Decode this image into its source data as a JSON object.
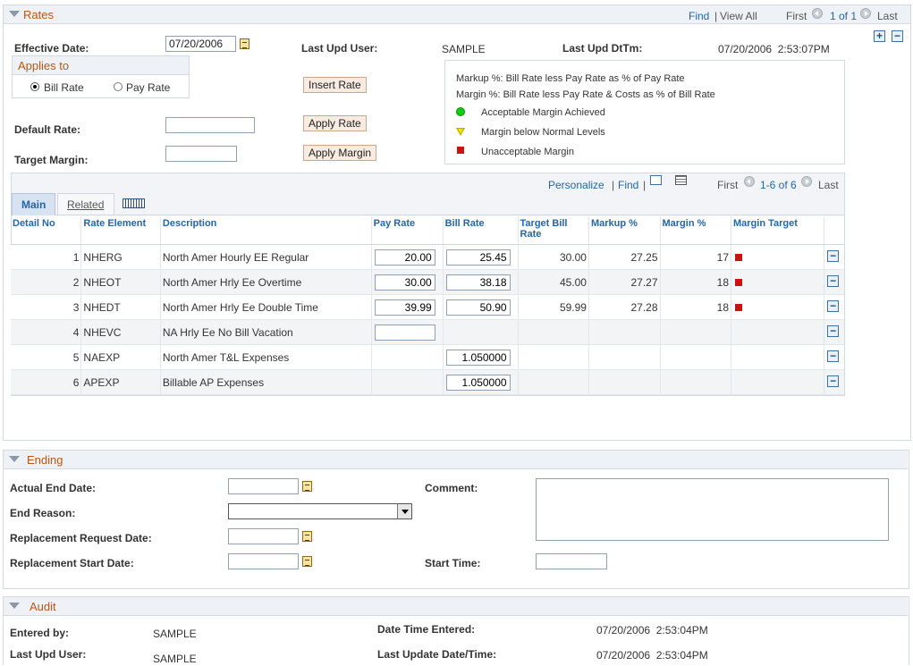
{
  "rates": {
    "title": "Rates",
    "nav": {
      "find": "Find",
      "view_all": "View All",
      "first": "First",
      "count": "1 of 1",
      "last": "Last"
    },
    "effective_date_label": "Effective Date:",
    "effective_date": "07/20/2006",
    "last_upd_user_label": "Last Upd User:",
    "last_upd_user": "SAMPLE",
    "last_upd_dttm_label": "Last Upd DtTm:",
    "last_upd_dttm": "07/20/2006  2:53:07PM",
    "applies_to_title": "Applies to",
    "radio_bill": "Bill Rate",
    "radio_pay": "Pay Rate",
    "selected": "Bill Rate",
    "insert_rate": "Insert Rate",
    "apply_rate": "Apply Rate",
    "apply_margin": "Apply Margin",
    "default_rate_label": "Default Rate:",
    "target_margin_label": "Target Margin:",
    "default_rate": "",
    "target_margin": "",
    "legend": {
      "markup_def": "Markup %: Bill Rate less Pay Rate as % of Pay Rate",
      "margin_def": "Margin %: Bill Rate less Pay Rate & Costs as % of Bill Rate",
      "green": "Acceptable Margin Achieved",
      "yellow": "Margin below Normal Levels",
      "red": "Unacceptable Margin",
      "colors": {
        "green": "#11cc11",
        "yellow": "#f2e600",
        "red": "#cc1111"
      }
    }
  },
  "grid": {
    "personalize": "Personalize",
    "find": "Find",
    "first": "First",
    "count": "1-6 of 6",
    "last": "Last",
    "tabs": [
      "Main",
      "Related"
    ],
    "active_tab": "Main",
    "columns": [
      "Detail No",
      "Rate Element",
      "Description",
      "Pay Rate",
      "Bill Rate",
      "Target Bill Rate",
      "Markup %",
      "Margin %",
      "Margin Target"
    ],
    "rows": [
      {
        "no": "1",
        "element": "NHERG",
        "desc": "North Amer Hourly EE Regular",
        "pay": "20.00",
        "bill": "25.45",
        "target": "30.00",
        "markup": "27.25",
        "margin": "17",
        "flag": "red",
        "has_pay": true,
        "has_bill": true
      },
      {
        "no": "2",
        "element": "NHEOT",
        "desc": "North Amer Hrly Ee Overtime",
        "pay": "30.00",
        "bill": "38.18",
        "target": "45.00",
        "markup": "27.27",
        "margin": "18",
        "flag": "red",
        "has_pay": true,
        "has_bill": true
      },
      {
        "no": "3",
        "element": "NHEDT",
        "desc": "North Amer Hrly Ee Double Time",
        "pay": "39.99",
        "bill": "50.90",
        "target": "59.99",
        "markup": "27.28",
        "margin": "18",
        "flag": "red",
        "has_pay": true,
        "has_bill": true
      },
      {
        "no": "4",
        "element": "NHEVC",
        "desc": "NA Hrly Ee No Bill Vacation",
        "pay": "",
        "bill": "",
        "target": "",
        "markup": "",
        "margin": "",
        "flag": "",
        "has_pay": true,
        "has_bill": false
      },
      {
        "no": "5",
        "element": "NAEXP",
        "desc": "North Amer T&L Expenses",
        "pay": "",
        "bill": "1.050000",
        "target": "",
        "markup": "",
        "margin": "",
        "flag": "",
        "has_pay": false,
        "has_bill": true
      },
      {
        "no": "6",
        "element": "APEXP",
        "desc": "Billable AP Expenses",
        "pay": "",
        "bill": "1.050000",
        "target": "",
        "markup": "",
        "margin": "",
        "flag": "",
        "has_pay": false,
        "has_bill": true
      }
    ]
  },
  "ending": {
    "title": "Ending",
    "actual_end_date": "Actual End Date:",
    "end_reason": "End Reason:",
    "replacement_request_date": "Replacement Request Date:",
    "replacement_start_date": "Replacement Start Date:",
    "comment": "Comment:",
    "start_time": "Start Time:"
  },
  "audit": {
    "title": "Audit",
    "entered_by_label": "Entered by:",
    "entered_by": "SAMPLE",
    "last_upd_user_label": "Last Upd User:",
    "last_upd_user": "SAMPLE",
    "date_time_entered_label": "Date Time Entered:",
    "date_time_entered": "07/20/2006  2:53:04PM",
    "last_update_label": "Last Update Date/Time:",
    "last_update": "07/20/2006  2:53:04PM"
  }
}
